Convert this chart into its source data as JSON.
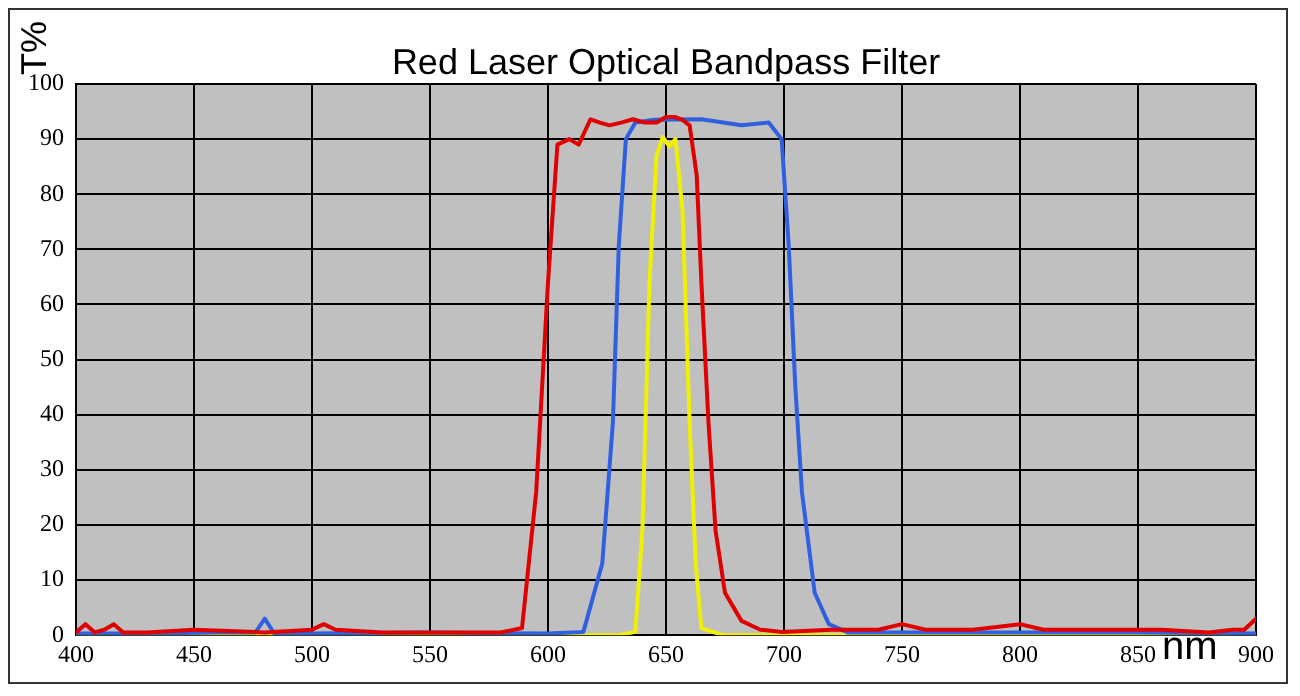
{
  "chart_data": {
    "type": "line",
    "title": "Red Laser Optical Bandpass Filter",
    "xlabel": "nm",
    "ylabel": "T%",
    "xlim": [
      400,
      900
    ],
    "xticks": [
      400,
      450,
      500,
      550,
      600,
      650,
      700,
      750,
      800,
      850,
      900
    ],
    "ylim": [
      0,
      100
    ],
    "yticks": [
      0,
      10,
      20,
      30,
      40,
      50,
      60,
      70,
      80,
      90,
      100
    ],
    "grid": true,
    "marker": "none",
    "line_style": "solid",
    "series": [
      {
        "color": "#e00000",
        "x": [
          400,
          404,
          408,
          412,
          416,
          420,
          430,
          450,
          480,
          500,
          505,
          510,
          530,
          560,
          580,
          589,
          595,
          600,
          604,
          609,
          613,
          618,
          622,
          626,
          631,
          636,
          641,
          646,
          650,
          654,
          657,
          660,
          663,
          665,
          668,
          671,
          675,
          682,
          690,
          699,
          720,
          740,
          750,
          760,
          780,
          800,
          810,
          830,
          860,
          880,
          890,
          895,
          900
        ],
        "values": [
          0.5,
          2,
          0.5,
          1,
          2,
          0.5,
          0.5,
          1,
          0.5,
          1,
          2,
          1,
          0.5,
          0.5,
          0.5,
          1.3,
          26,
          64,
          89,
          90,
          89,
          93.6,
          93,
          92.5,
          93,
          93.6,
          93,
          93,
          94,
          94,
          93.5,
          92.5,
          83.5,
          64,
          38.6,
          19,
          7.7,
          2.6,
          1,
          0.6,
          1,
          1,
          2,
          1,
          1,
          2,
          1,
          1,
          1,
          0.5,
          1,
          1,
          3
        ]
      },
      {
        "color": "#3060e0",
        "x": [
          400,
          430,
          460,
          476,
          480,
          484,
          500,
          550,
          600,
          615,
          623,
          627.5,
          630,
          633,
          637,
          645,
          665,
          682,
          693.5,
          699,
          702,
          704.8,
          707.6,
          713,
          719,
          727,
          750,
          800,
          850,
          900
        ],
        "values": [
          0.3,
          0.3,
          0.5,
          0.5,
          3,
          0.3,
          0.3,
          0.5,
          0.3,
          0.6,
          13,
          38.6,
          70.7,
          90,
          93,
          93.5,
          93.6,
          92.5,
          93,
          90,
          70.7,
          45,
          26,
          7.7,
          2,
          0.5,
          0.5,
          0.5,
          0.5,
          0.3
        ]
      },
      {
        "color": "#f0f000",
        "x": [
          400,
          580,
          630,
          637,
          640,
          643,
          646,
          648.6,
          651.4,
          654,
          657,
          660,
          662.6,
          665,
          674,
          700,
          800,
          900
        ],
        "values": [
          0,
          0,
          0,
          0.6,
          19,
          64,
          87,
          90.4,
          88.7,
          90,
          77,
          38.6,
          12.9,
          1.3,
          0,
          0,
          0,
          0
        ]
      }
    ]
  }
}
